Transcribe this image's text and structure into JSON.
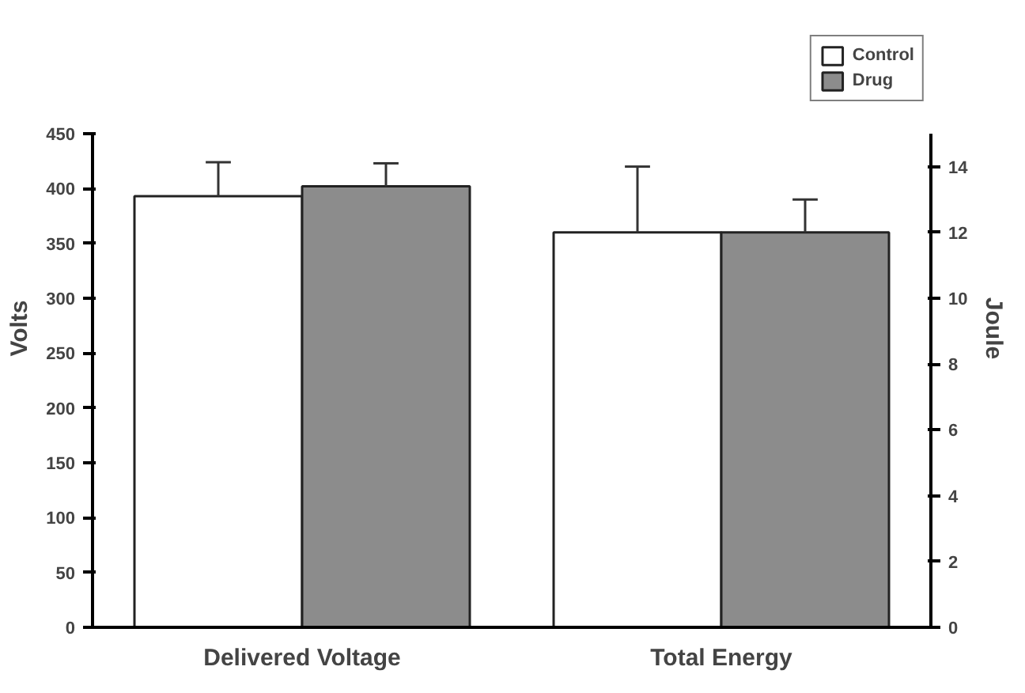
{
  "chart_data": {
    "type": "bar",
    "categories": [
      "Delivered Voltage",
      "Total Energy"
    ],
    "ylabel": "Volts",
    "y2label": "Joule",
    "ylim": [
      0,
      450
    ],
    "yticks": [
      0,
      50,
      100,
      150,
      200,
      250,
      300,
      350,
      400,
      450
    ],
    "y2lim": [
      0,
      15
    ],
    "y2ticks": [
      0,
      2,
      4,
      6,
      8,
      10,
      12,
      14
    ],
    "series": [
      {
        "name": "Control",
        "color": "#ffffff",
        "values": [
          393,
          null
        ],
        "errors": [
          [
            393,
            424
          ],
          null
        ]
      },
      {
        "name": "Drug",
        "color": "#8c8c8c",
        "values": [
          402,
          null
        ],
        "errors": [
          [
            402,
            423
          ],
          null
        ]
      },
      {
        "color": "#ffffff",
        "axis": "y2",
        "values": [
          null,
          12
        ],
        "errors": [
          null,
          [
            12,
            14
          ]
        ]
      },
      {
        "color": "#8c8c8c",
        "axis": "y2",
        "values": [
          null,
          12
        ],
        "errors": [
          null,
          [
            12,
            13
          ]
        ]
      }
    ],
    "legend": "top right",
    "grid": false
  }
}
